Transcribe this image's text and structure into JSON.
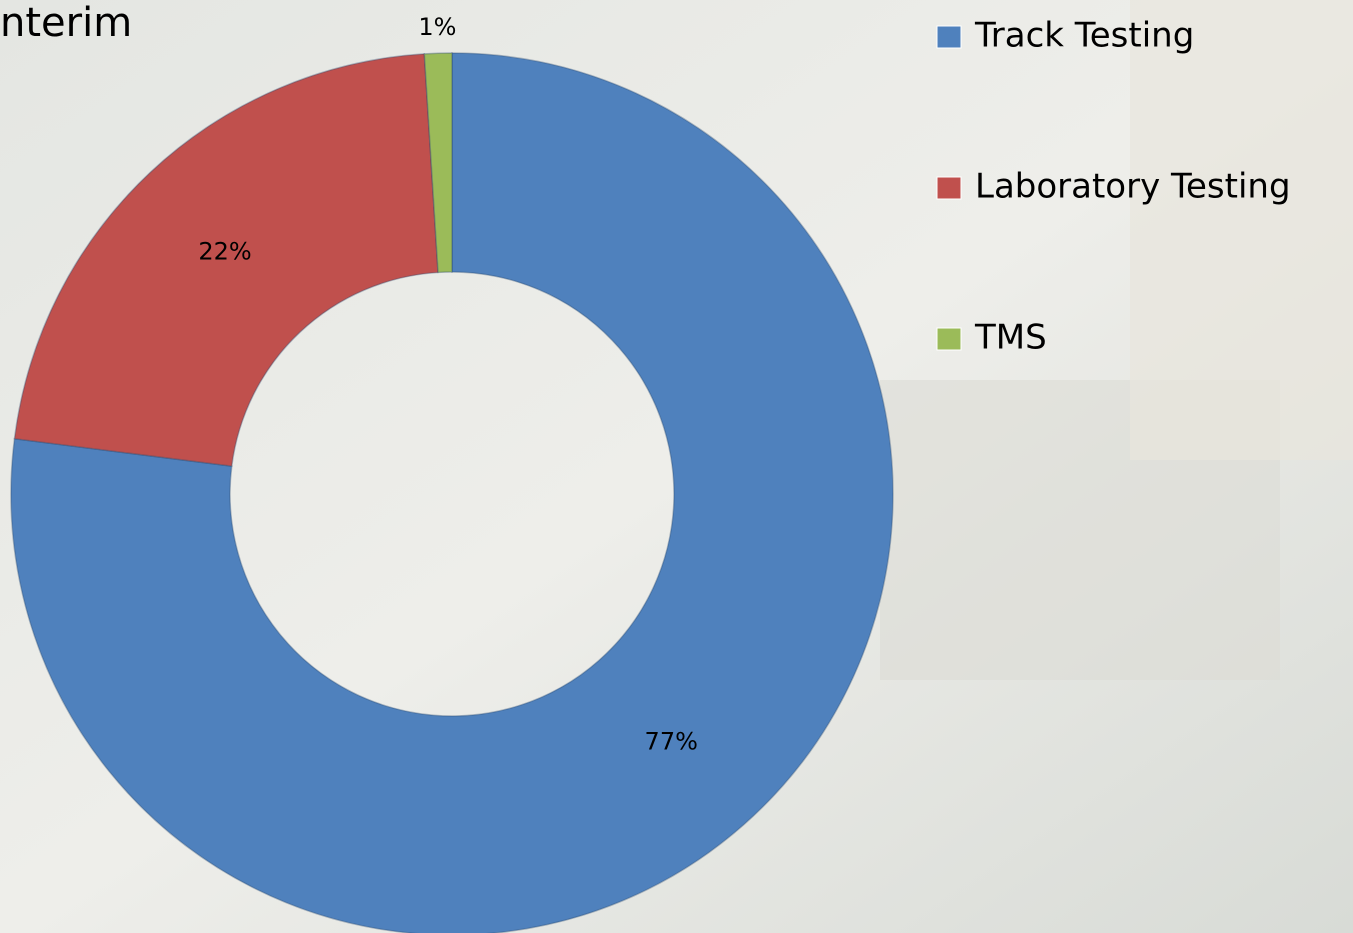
{
  "chart_data": {
    "type": "donut",
    "title": "nterim",
    "categories": [
      "Track Testing",
      "Laboratory Testing",
      "TMS"
    ],
    "values": [
      77,
      22,
      1
    ],
    "value_labels": [
      "77%",
      "22%",
      "1%"
    ],
    "colors": [
      "#4f81bd",
      "#c0504d",
      "#9bbb59"
    ],
    "legend": "right"
  }
}
